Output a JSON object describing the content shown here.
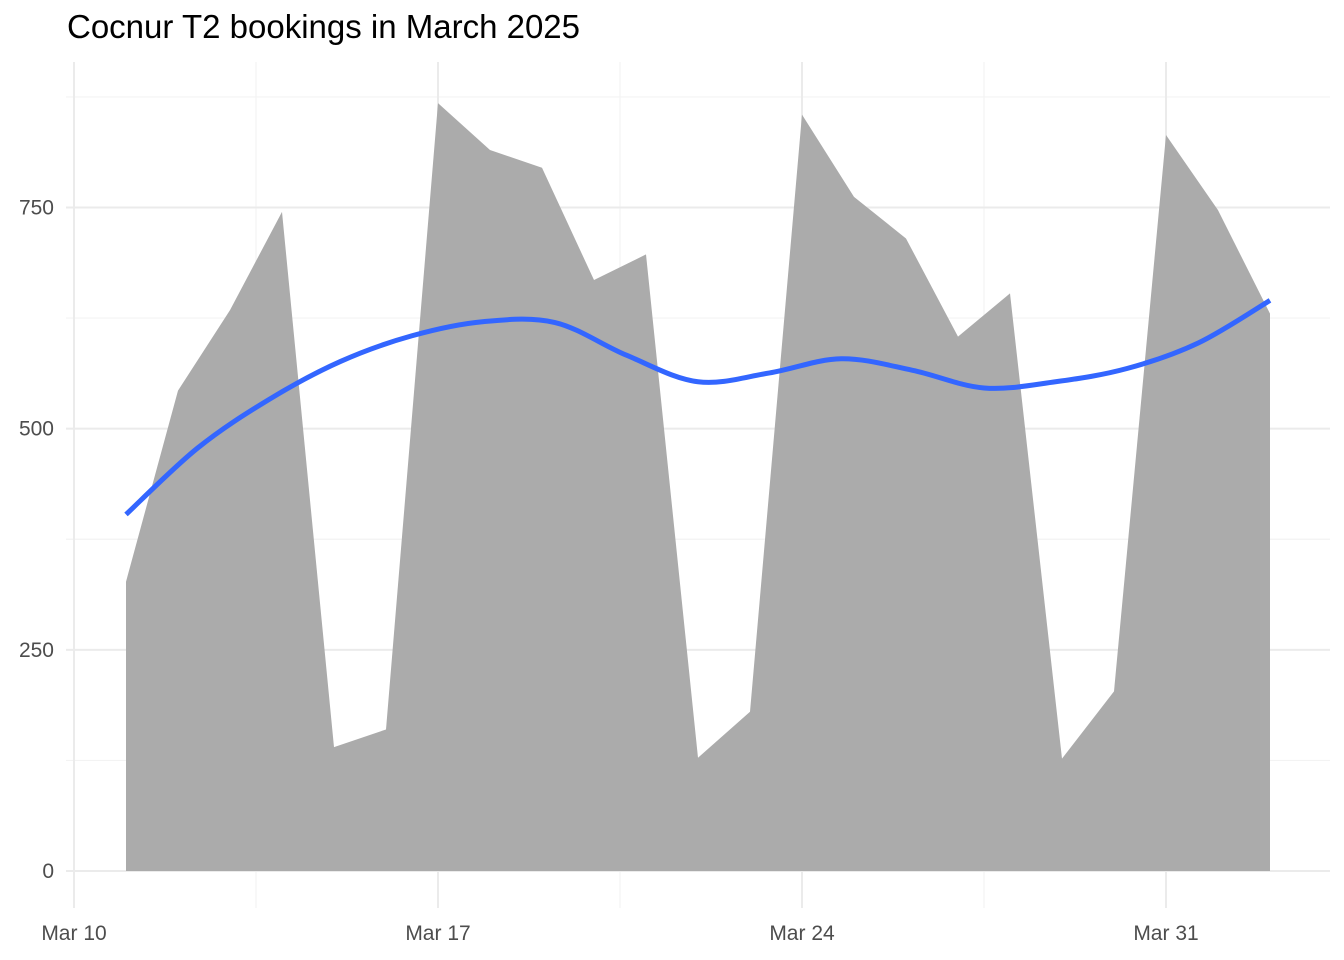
{
  "chart_data": {
    "type": "area",
    "title": "Cocnur T2 bookings in March 2025",
    "xlabel": "",
    "ylabel": "",
    "x": [
      "2025-03-11",
      "2025-03-12",
      "2025-03-13",
      "2025-03-14",
      "2025-03-15",
      "2025-03-16",
      "2025-03-17",
      "2025-03-18",
      "2025-03-19",
      "2025-03-20",
      "2025-03-21",
      "2025-03-22",
      "2025-03-23",
      "2025-03-24",
      "2025-03-25",
      "2025-03-26",
      "2025-03-27",
      "2025-03-28",
      "2025-03-29",
      "2025-03-30",
      "2025-03-31",
      "2025-04-01",
      "2025-04-02"
    ],
    "series": [
      {
        "values": [
          327,
          543,
          634,
          745,
          140,
          160,
          868,
          815,
          795,
          668,
          697,
          128,
          180,
          855,
          762,
          715,
          604,
          653,
          127,
          203,
          832,
          747,
          630
        ]
      }
    ],
    "smooth": {
      "values": [
        403,
        478,
        533,
        576,
        605,
        621,
        620,
        583,
        553,
        563,
        579,
        566,
        546,
        553,
        568,
        597,
        645
      ]
    },
    "x_ticks": [
      "Mar 10",
      "Mar 17",
      "Mar 24",
      "Mar 31"
    ],
    "y_ticks": [
      "0",
      "250",
      "500",
      "750"
    ],
    "ylim": [
      0,
      880
    ],
    "xlim": [
      "2025-03-10",
      "2025-04-03"
    ],
    "grid": true,
    "colors": {
      "area": "#ababab",
      "smooth": "#3366ff",
      "grid_major": "#ebebeb",
      "grid_minor": "#f3f3f3",
      "tick_text": "#4d4d4d"
    }
  }
}
